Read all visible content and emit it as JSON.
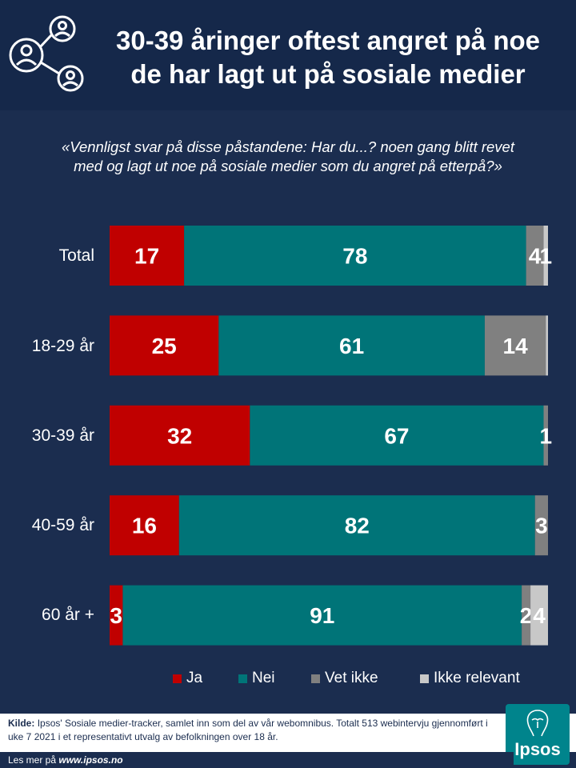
{
  "header": {
    "title_line1": "30-39 åringer oftest angret på noe",
    "title_line2": "de har lagt ut på sosiale medier"
  },
  "subtitle": {
    "line1": "«Vennligst svar på disse påstandene: Har du...? noen gang blitt revet",
    "line2": "med og lagt ut noe på sosiale medier som du angret på etterpå?»"
  },
  "colors": {
    "ja": "#c00000",
    "nei": "#007478",
    "vet_ikke": "#808080",
    "ikke_relevant": "#c8c8c8"
  },
  "chart_data": {
    "type": "bar",
    "orientation": "horizontal",
    "stacked": true,
    "categories": [
      "Total",
      "18-29 år",
      "30-39 år",
      "40-59 år",
      "60 år +"
    ],
    "series": [
      {
        "name": "Ja",
        "values": [
          17,
          25,
          32,
          16,
          3
        ],
        "labels": [
          "17",
          "25",
          "32",
          "16",
          "3"
        ]
      },
      {
        "name": "Nei",
        "values": [
          78,
          61,
          67,
          82,
          91
        ],
        "labels": [
          "78",
          "61",
          "67",
          "82",
          "91"
        ]
      },
      {
        "name": "Vet ikke",
        "values": [
          4,
          14,
          1,
          3,
          2
        ],
        "labels": [
          "4",
          "14",
          "1",
          "3",
          "2"
        ]
      },
      {
        "name": "Ikke relevant",
        "values": [
          1,
          0.5,
          0,
          0,
          4
        ],
        "labels": [
          "1",
          "",
          "",
          "",
          "4"
        ]
      }
    ],
    "xlim": [
      0,
      100
    ],
    "unit": "%"
  },
  "footer": {
    "source_label": "Kilde:",
    "source_text": "Ipsos' Sosiale medier-tracker, samlet inn som del av vår webomnibus. Totalt 513 webintervju gjennomført i uke 7 2021 i et representativt utvalg av befolkningen over 18 år.",
    "more_prefix": "Les mer på",
    "more_link": "www.ipsos.no",
    "logo_text": "Ipsos"
  }
}
